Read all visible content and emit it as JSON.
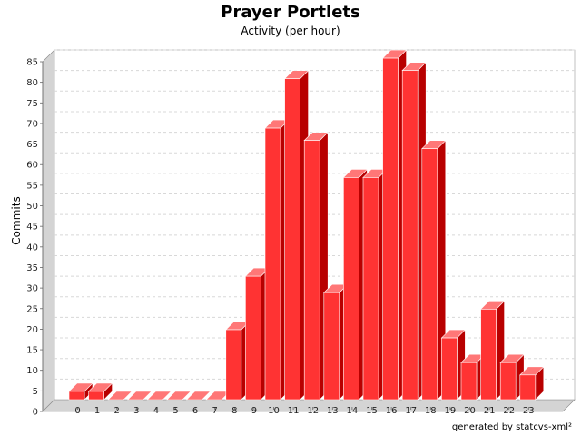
{
  "chart_data": {
    "type": "bar",
    "title": "Prayer Portlets",
    "subtitle": "Activity (per hour)",
    "xlabel": "",
    "ylabel": "Commits",
    "categories": [
      "0",
      "1",
      "2",
      "3",
      "4",
      "5",
      "6",
      "7",
      "8",
      "9",
      "10",
      "11",
      "12",
      "13",
      "14",
      "15",
      "16",
      "17",
      "18",
      "19",
      "20",
      "21",
      "22",
      "23"
    ],
    "values": [
      2,
      2,
      0,
      0,
      0,
      0,
      0,
      0,
      17,
      30,
      66,
      78,
      63,
      26,
      54,
      54,
      83,
      80,
      61,
      15,
      9,
      22,
      9,
      6
    ],
    "ylim": [
      0,
      85
    ],
    "yticks": [
      0,
      5,
      10,
      15,
      20,
      25,
      30,
      35,
      40,
      45,
      50,
      55,
      60,
      65,
      70,
      75,
      80,
      85
    ],
    "grid": true,
    "legend": "none",
    "colors": {
      "bar_front": "#ff3333",
      "bar_side": "#b80000",
      "bar_top": "#ff7777",
      "wall": "#d4d4d4"
    }
  },
  "footer": {
    "credit": "generated by statcvs-xml²"
  }
}
